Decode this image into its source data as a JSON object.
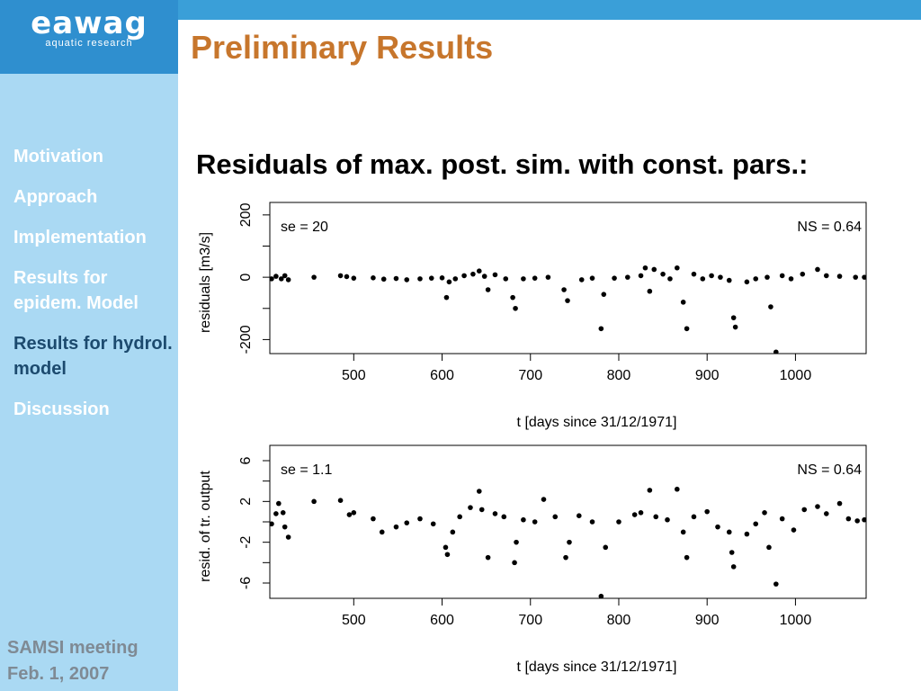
{
  "header": {
    "logo_text": "eawag",
    "logo_subtext": "aquatic research",
    "title": "Preliminary Results"
  },
  "sidebar": {
    "items": [
      {
        "label": "Motivation",
        "active": false
      },
      {
        "label": "Approach",
        "active": false
      },
      {
        "label": "Implementation",
        "active": false
      },
      {
        "label": "Results for epidem. Model",
        "active": false
      },
      {
        "label": "Results for hydrol. model",
        "active": true
      },
      {
        "label": "Discussion",
        "active": false
      }
    ],
    "footer": "SAMSI meeting Feb. 1, 2007"
  },
  "content": {
    "subtitle": "Residuals of max. post. sim. with const. pars.:"
  },
  "colors": {
    "accent_top": "#3a9fd8",
    "logo_bg": "#2f8fcf",
    "sidebar_bg": "#aad9f3",
    "title": "#c7762c",
    "nav_active": "#1c4a6e",
    "footer": "#7f8a94"
  },
  "chart_data": [
    {
      "type": "scatter",
      "xlabel": "t [days since 31/12/1971]",
      "ylabel": "residuals [m3/s]",
      "xlim": [
        405,
        1080
      ],
      "ylim": [
        -245,
        240
      ],
      "xticks": [
        "500",
        "600",
        "700",
        "800",
        "900",
        "1000"
      ],
      "yticks": [
        "200",
        "0",
        "-200"
      ],
      "annotation_left": "se = 20",
      "annotation_right": "NS = 0.64",
      "x": [
        407,
        412,
        418,
        422,
        426,
        455,
        485,
        492,
        500,
        522,
        534,
        548,
        560,
        575,
        588,
        600,
        605,
        608,
        615,
        625,
        635,
        642,
        648,
        652,
        660,
        672,
        680,
        683,
        692,
        705,
        720,
        738,
        742,
        758,
        770,
        780,
        783,
        795,
        810,
        825,
        830,
        835,
        840,
        850,
        858,
        866,
        873,
        877,
        885,
        895,
        905,
        915,
        925,
        930,
        932,
        945,
        955,
        968,
        972,
        978,
        985,
        995,
        1008,
        1025,
        1035,
        1050,
        1068,
        1078
      ],
      "y": [
        -5,
        3,
        -5,
        5,
        -8,
        0,
        5,
        2,
        -3,
        -2,
        -6,
        -4,
        -8,
        -5,
        -3,
        -2,
        -65,
        -15,
        -5,
        5,
        10,
        20,
        3,
        -40,
        8,
        -5,
        -65,
        -100,
        -5,
        -3,
        0,
        -40,
        -75,
        -8,
        -3,
        -165,
        -55,
        -3,
        0,
        5,
        30,
        -45,
        25,
        10,
        -5,
        30,
        -80,
        -165,
        10,
        -5,
        5,
        0,
        -10,
        -130,
        -160,
        -15,
        -5,
        0,
        -95,
        -240,
        5,
        -5,
        10,
        25,
        5,
        3,
        0,
        0
      ]
    },
    {
      "type": "scatter",
      "xlabel": "t [days since 31/12/1971]",
      "ylabel": "resid. of tr. output",
      "xlim": [
        405,
        1080
      ],
      "ylim": [
        -7.5,
        7.5
      ],
      "xticks": [
        "500",
        "600",
        "700",
        "800",
        "900",
        "1000"
      ],
      "yticks": [
        "6",
        "2",
        "-2",
        "-6"
      ],
      "annotation_left": "se = 1.1",
      "annotation_right": "NS = 0.64",
      "x": [
        407,
        412,
        415,
        420,
        422,
        426,
        455,
        485,
        495,
        500,
        522,
        532,
        548,
        560,
        575,
        590,
        604,
        606,
        612,
        620,
        632,
        642,
        645,
        652,
        660,
        670,
        682,
        684,
        692,
        705,
        715,
        728,
        740,
        744,
        755,
        770,
        780,
        785,
        800,
        818,
        825,
        835,
        842,
        855,
        866,
        873,
        877,
        885,
        900,
        912,
        925,
        928,
        930,
        945,
        955,
        965,
        970,
        978,
        985,
        998,
        1010,
        1025,
        1035,
        1050,
        1060,
        1070,
        1078
      ],
      "y": [
        -0.2,
        0.8,
        1.8,
        0.9,
        -0.5,
        -1.5,
        2.0,
        2.1,
        0.7,
        0.9,
        0.3,
        -1.0,
        -0.5,
        -0.1,
        0.3,
        -0.2,
        -2.5,
        -3.2,
        -1.0,
        0.5,
        1.4,
        3.0,
        1.2,
        -3.5,
        0.8,
        0.5,
        -4.0,
        -2.0,
        0.2,
        0.0,
        2.2,
        0.5,
        -3.5,
        -2.0,
        0.6,
        0.0,
        -7.3,
        -2.5,
        0.0,
        0.7,
        0.9,
        3.1,
        0.5,
        0.2,
        3.2,
        -1.0,
        -3.5,
        0.5,
        1.0,
        -0.5,
        -1.0,
        -3.0,
        -4.4,
        -1.2,
        -0.2,
        0.9,
        -2.5,
        -6.1,
        0.3,
        -0.8,
        1.2,
        1.5,
        0.8,
        1.8,
        0.3,
        0.1,
        0.2
      ]
    }
  ]
}
